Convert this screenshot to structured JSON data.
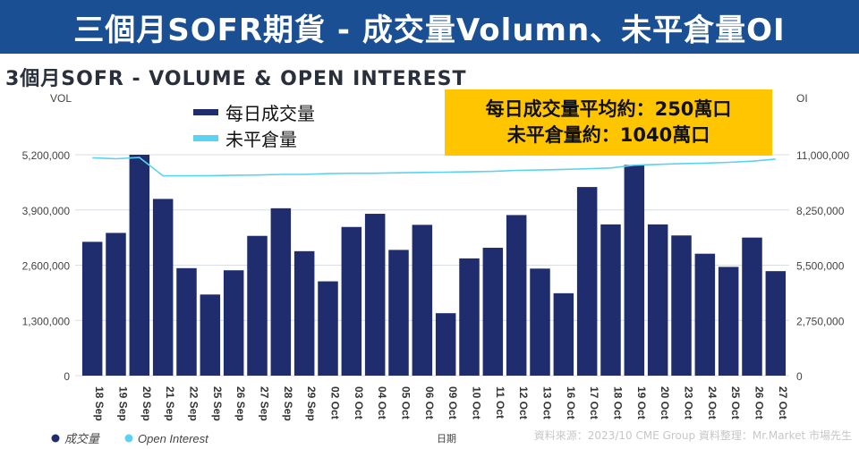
{
  "banner": {
    "title": "三個月SOFR期貨 - 成交量Volumn、未平倉量OI"
  },
  "chart_data": {
    "type": "bar",
    "title": "3個月SOFR - VOLUME & OPEN INTEREST",
    "xlabel": "日期",
    "ylabel_left": "VOL",
    "ylabel_right": "OI",
    "ylim_left": [
      0,
      5200000
    ],
    "ylim_right": [
      0,
      11000000
    ],
    "yticks_left": [
      "0",
      "1,300,000",
      "2,600,000",
      "3,900,000",
      "5,200,000"
    ],
    "yticks_right": [
      "0",
      "2,750,000",
      "5,500,000",
      "8,250,000",
      "11,000,000"
    ],
    "grid": true,
    "categories": [
      "18 Sep",
      "19 Sep",
      "20 Sep",
      "21 Sep",
      "22 Sep",
      "25 Sep",
      "26 Sep",
      "27 Sep",
      "28 Sep",
      "29 Sep",
      "02 Oct",
      "03 Oct",
      "04 Oct",
      "05 Oct",
      "06 Oct",
      "09 Oct",
      "10 Oct",
      "11 Oct",
      "12 Oct",
      "13 Oct",
      "16 Oct",
      "17 Oct",
      "18 Oct",
      "19 Oct",
      "20 Oct",
      "23 Oct",
      "24 Oct",
      "25 Oct",
      "26 Oct",
      "27 Oct"
    ],
    "series": [
      {
        "name": "每日成交量",
        "axis": "left",
        "type": "bar",
        "color": "#1f2d6e",
        "values": [
          3150000,
          3360000,
          5200000,
          4160000,
          2530000,
          1910000,
          2480000,
          3290000,
          3940000,
          2930000,
          2220000,
          3500000,
          3810000,
          2960000,
          3550000,
          1470000,
          2760000,
          3010000,
          3780000,
          2520000,
          1940000,
          4440000,
          3560000,
          4960000,
          3560000,
          3300000,
          2870000,
          2560000,
          3250000,
          2460000
        ]
      },
      {
        "name": "未平倉量",
        "axis": "right",
        "type": "line",
        "color": "#5ad3f2",
        "values": [
          10850000,
          10800000,
          10860000,
          9950000,
          9950000,
          9960000,
          9980000,
          9990000,
          10020000,
          10020000,
          10060000,
          10080000,
          10080000,
          10100000,
          10120000,
          10130000,
          10150000,
          10170000,
          10220000,
          10240000,
          10270000,
          10300000,
          10340000,
          10480000,
          10520000,
          10560000,
          10580000,
          10620000,
          10680000,
          10780000
        ]
      }
    ],
    "legend": {
      "placement": "top-left",
      "items": [
        "每日成交量",
        "未平倉量"
      ]
    },
    "bottom_legend": [
      "成交量",
      "Open Interest"
    ]
  },
  "callout": {
    "line1": "每日成交量平均約：250萬口",
    "line2": "未平倉量約：1040萬口"
  },
  "source_note": "資料來源：2023/10  CME Group     資料整理：Mr.Market 市場先生",
  "colors": {
    "banner": "#1b4f93",
    "bar": "#1f2d6e",
    "line": "#5ad3f2",
    "callout": "#ffc600"
  }
}
